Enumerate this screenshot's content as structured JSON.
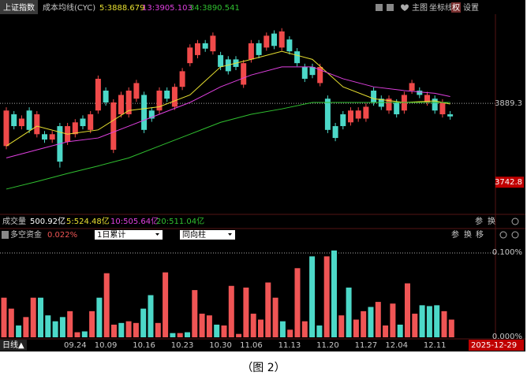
{
  "header": {
    "symbol": "上证指数",
    "indicator": "成本均线(CYC)",
    "buttons": [
      "主图",
      "坐标线",
      "权",
      "设置"
    ]
  },
  "chart_data": [
    {
      "type": "candlestick",
      "open": [
        3810,
        3869,
        3847,
        3876,
        3832,
        3832,
        3822,
        3847,
        3818,
        3832,
        3861,
        3840,
        3876,
        3913,
        3803,
        3869,
        3869,
        3898,
        3905,
        3876,
        3876,
        3913,
        3883,
        3920,
        3964,
        3979,
        4001,
        3986,
        3979,
        3971,
        3971,
        3924,
        3971,
        4001,
        3993,
        4019,
        3993,
        4008,
        3986,
        3957,
        3957,
        3927,
        3898,
        3847,
        3869,
        3854,
        3861,
        3861,
        3913,
        3898,
        3876,
        3891,
        3876,
        3913,
        3913,
        3891,
        3898,
        3869,
        3869
      ],
      "high": [
        3882,
        3875,
        3867,
        3882,
        3875,
        3838,
        3838,
        3853,
        3853,
        3860,
        3867,
        3875,
        3941,
        3919,
        3897,
        3911,
        3919,
        3933,
        3911,
        3882,
        3919,
        3919,
        3926,
        3955,
        3999,
        4007,
        4007,
        4021,
        3985,
        3977,
        3977,
        3970,
        4007,
        4007,
        4021,
        4025,
        4029,
        4014,
        3992,
        3963,
        3963,
        3963,
        3904,
        3853,
        3875,
        3882,
        3882,
        3889,
        3919,
        3904,
        3904,
        3897,
        3911,
        3933,
        3919,
        3911,
        3904,
        3897,
        3875
      ],
      "low": [
        3804,
        3841,
        3841,
        3834,
        3826,
        3816,
        3816,
        3770,
        3812,
        3826,
        3841,
        3834,
        3870,
        3885,
        3797,
        3863,
        3863,
        3892,
        3834,
        3855,
        3870,
        3892,
        3877,
        3914,
        3958,
        3973,
        3985,
        3980,
        3951,
        3943,
        3951,
        3918,
        3965,
        3973,
        3987,
        3990,
        3987,
        3980,
        3958,
        3929,
        3936,
        3921,
        3834,
        3819,
        3841,
        3848,
        3855,
        3855,
        3885,
        3877,
        3870,
        3863,
        3870,
        3907,
        3899,
        3885,
        3870,
        3863,
        3859
      ],
      "close": [
        3876,
        3847,
        3861,
        3840,
        3869,
        3822,
        3832,
        3781,
        3847,
        3854,
        3847,
        3869,
        3935,
        3891,
        3891,
        3905,
        3913,
        3927,
        3840,
        3861,
        3913,
        3898,
        3920,
        3949,
        3993,
        4001,
        3991,
        4015,
        3957,
        3949,
        3957,
        3964,
        4001,
        3979,
        4015,
        3996,
        4023,
        3986,
        3964,
        3935,
        3942,
        3957,
        3840,
        3825,
        3847,
        3876,
        3876,
        3883,
        3891,
        3883,
        3898,
        3869,
        3905,
        3927,
        3905,
        3905,
        3876,
        3891,
        3865
      ],
      "categories": [
        null,
        null,
        null,
        null,
        null,
        null,
        null,
        null,
        null,
        "09.24",
        null,
        null,
        null,
        "10.09",
        null,
        null,
        null,
        null,
        "10.16",
        null,
        null,
        null,
        null,
        "10.23",
        null,
        null,
        null,
        null,
        "10.30",
        null,
        null,
        null,
        "11.06",
        null,
        null,
        null,
        null,
        "11.13",
        null,
        null,
        null,
        null,
        "11.20",
        null,
        null,
        null,
        null,
        "11.27",
        null,
        null,
        null,
        "12.04",
        null,
        null,
        null,
        null,
        "12.11",
        null,
        null
      ],
      "up_color": "#f04a4a",
      "down_color": "#4cd8c8",
      "series": [
        {
          "name": "5:3888.679",
          "color": "#e8e030",
          "x": [
            0,
            4,
            8,
            12,
            16,
            20,
            24,
            28,
            32,
            36,
            40,
            44,
            48,
            52,
            56,
            58
          ],
          "values": [
            3810,
            3847,
            3832,
            3840,
            3876,
            3883,
            3905,
            3957,
            3971,
            3986,
            3971,
            3920,
            3898,
            3891,
            3894,
            3888
          ]
        },
        {
          "name": "13:3905.103",
          "color": "#e040e0",
          "x": [
            0,
            4,
            8,
            12,
            16,
            20,
            24,
            28,
            32,
            36,
            40,
            44,
            48,
            52,
            56,
            58
          ],
          "values": [
            3788,
            3803,
            3818,
            3825,
            3847,
            3869,
            3891,
            3920,
            3942,
            3957,
            3957,
            3935,
            3920,
            3913,
            3908,
            3902
          ]
        },
        {
          "name": "34:3890.541",
          "color": "#30c030",
          "x": [
            0,
            4,
            8,
            12,
            16,
            20,
            24,
            28,
            32,
            36,
            40,
            44,
            48,
            52,
            56,
            58
          ],
          "values": [
            3730,
            3744,
            3759,
            3773,
            3788,
            3810,
            3832,
            3854,
            3869,
            3879,
            3891,
            3891,
            3891,
            3891,
            3891,
            3891
          ]
        }
      ],
      "ylim": [
        3686,
        4055
      ],
      "yticks": [
        3889.3,
        3742.8
      ]
    },
    {
      "type": "bar",
      "values": [
        0.047,
        0.034,
        0.014,
        0.024,
        0.047,
        0.047,
        0.026,
        0.019,
        0.024,
        0.031,
        0.006,
        0.007,
        0.031,
        0.047,
        0.076,
        0.015,
        0.017,
        0.019,
        0.017,
        0.034,
        0.05,
        0.017,
        0.077,
        0.005,
        0.005,
        0.006,
        0.056,
        0.028,
        0.026,
        0.015,
        0.014,
        0.061,
        0.004,
        0.059,
        0.028,
        0.021,
        0.065,
        0.047,
        0.019,
        0.009,
        0.082,
        0.019,
        0.096,
        0.014,
        0.096,
        0.103,
        0.026,
        0.059,
        0.021,
        0.031,
        0.036,
        0.042,
        0.014,
        0.04,
        0.015,
        0.064,
        0.028,
        0.038,
        0.037,
        0.038,
        0.031,
        0.021
      ],
      "colors": [
        "#f05555",
        "#f05555",
        "#4cd8c8",
        "#f05555",
        "#f05555",
        "#4cd8c8",
        "#4cd8c8",
        "#4cd8c8",
        "#4cd8c8",
        "#f05555",
        "#f05555",
        "#4cd8c8",
        "#f05555",
        "#4cd8c8",
        "#f05555",
        "#f05555",
        "#4cd8c8",
        "#f05555",
        "#f05555",
        "#4cd8c8",
        "#4cd8c8",
        "#f05555",
        "#f05555",
        "#4cd8c8",
        "#f05555",
        "#4cd8c8",
        "#f05555",
        "#f05555",
        "#f05555",
        "#4cd8c8",
        "#f05555",
        "#f05555",
        "#f05555",
        "#f05555",
        "#f05555",
        "#f05555",
        "#f05555",
        "#f05555",
        "#4cd8c8",
        "#f05555",
        "#f05555",
        "#f05555",
        "#4cd8c8",
        "#4cd8c8",
        "#f05555",
        "#4cd8c8",
        "#f05555",
        "#4cd8c8",
        "#f05555",
        "#f05555",
        "#4cd8c8",
        "#f05555",
        "#f05555",
        "#f05555",
        "#4cd8c8",
        "#f05555",
        "#f05555",
        "#4cd8c8",
        "#4cd8c8",
        "#4cd8c8",
        "#f05555",
        "#f05555"
      ],
      "ylim": [
        0,
        0.115
      ],
      "yticks": [
        {
          "value": 0.1,
          "label": "0.100%"
        },
        {
          "value": 0,
          "label": "0.000%"
        }
      ]
    }
  ],
  "volume_row": {
    "label": "成交量",
    "total": "500.92亿",
    "ma": [
      "5:524.48亿",
      "10:505.64亿",
      "20:511.04亿"
    ],
    "tools": [
      "参",
      "换"
    ]
  },
  "flow_header": {
    "title": "多空资金",
    "value": "0.022%",
    "select1": "1日累计",
    "select2": "同向柱",
    "tools": [
      "参",
      "换",
      "移"
    ]
  },
  "footer": {
    "period": "日线▲",
    "last_date": "2025-12-29"
  },
  "caption": "（图 2）"
}
